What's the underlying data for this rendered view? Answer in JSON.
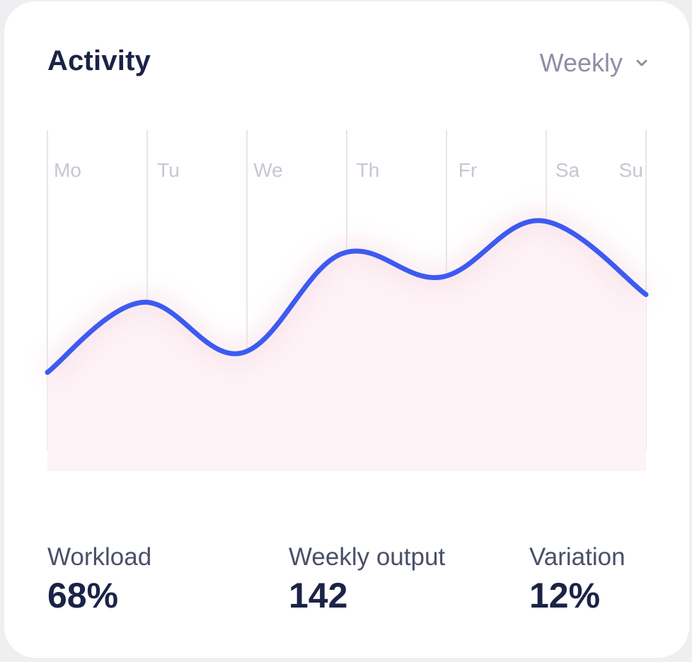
{
  "header": {
    "title": "Activity",
    "period_label": "Weekly"
  },
  "icons": {
    "period_dropdown": "chevron-down-icon"
  },
  "colors": {
    "line": "#3d5af1",
    "title": "#1b2346",
    "muted": "#8c8fa4",
    "gridline": "#e6e6ea",
    "area_fill": "#fdf3f6"
  },
  "chart_data": {
    "type": "line",
    "categories": [
      "Mo",
      "Tu",
      "We",
      "Th",
      "Fr",
      "Sa",
      "Su"
    ],
    "series": [
      {
        "values": [
          22,
          58,
          32,
          83,
          71,
          100,
          62
        ]
      }
    ],
    "ylim": [
      0,
      100
    ],
    "grid": "vertical",
    "smooth": true,
    "area": true,
    "y_axis_visible": false
  },
  "stats": [
    {
      "label": "Workload",
      "value": "68%"
    },
    {
      "label": "Weekly output",
      "value": "142"
    },
    {
      "label": "Variation",
      "value": "12%"
    }
  ]
}
